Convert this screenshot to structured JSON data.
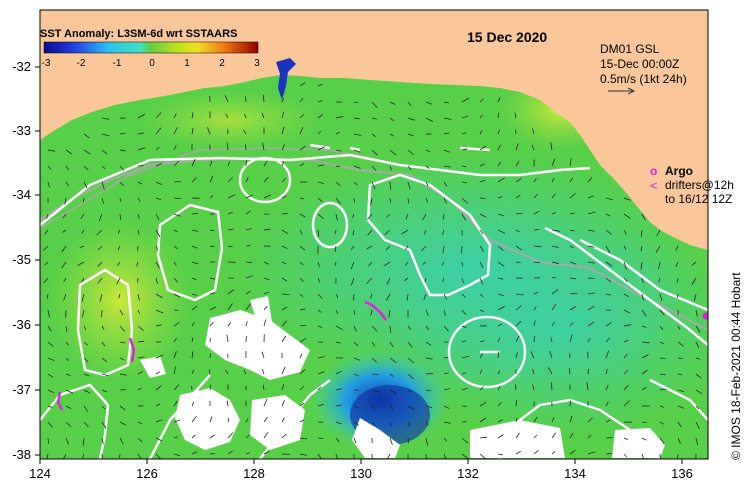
{
  "map": {
    "date": "15 Dec 2020",
    "colorbar": {
      "title": "SST Anomaly: L3SM-6d wrt SSTAARS",
      "ticks": [
        "-3",
        "-2",
        "-1",
        "0",
        "1",
        "2",
        "3"
      ]
    },
    "info": {
      "line1": "DM01 GSL",
      "line2": "15-Dec 00:00Z",
      "line3": "0.5m/s (1kt 24h)"
    },
    "legend": {
      "argo_symbol": "o",
      "argo_label": "Argo",
      "drifter_symbol": "<",
      "drifter_line1": "drifters@12h",
      "drifter_line2": "to 16/12 12Z"
    },
    "axes": {
      "x_ticks": [
        "124",
        "126",
        "128",
        "130",
        "132",
        "134",
        "136"
      ],
      "y_ticks": [
        "-32",
        "-33",
        "-34",
        "-35",
        "-36",
        "-37",
        "-38"
      ],
      "x_range": [
        124,
        136.5
      ],
      "y_range": [
        -31.3,
        -38.1
      ]
    },
    "credit": "© IMOS 18-Feb-2021 00:44 Hobart",
    "colors": {
      "land": "#f9c79a",
      "ocean_base": "#5ed14a",
      "contour": "#ffffff",
      "shelf": "#a8a8a8",
      "argo": "#e020e0",
      "drifter": "#e020e0"
    }
  }
}
